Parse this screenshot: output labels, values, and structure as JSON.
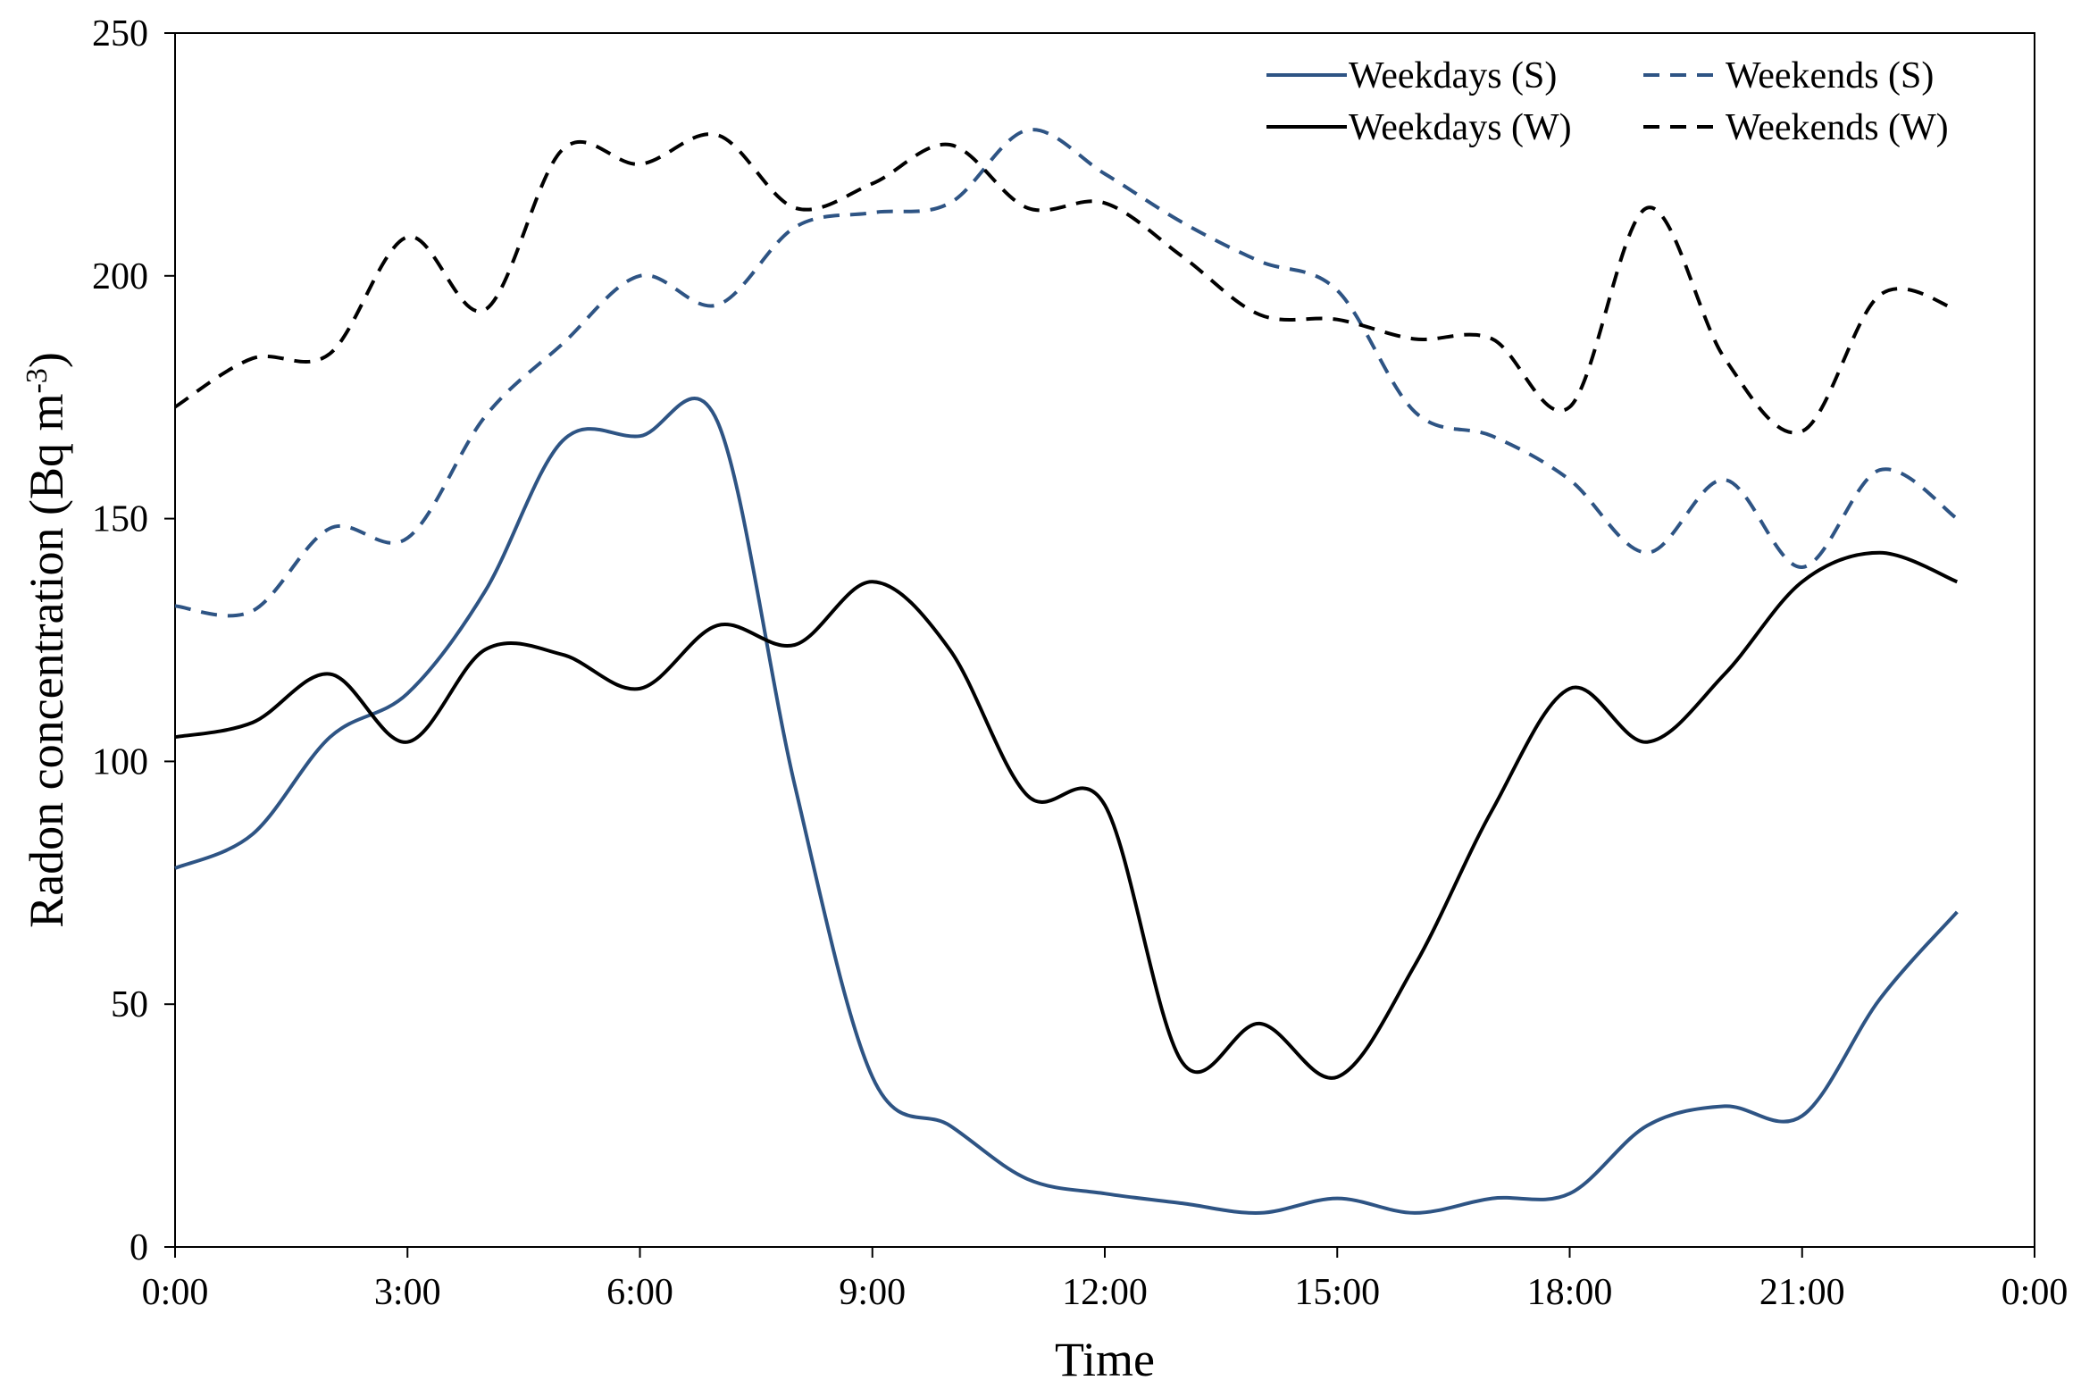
{
  "chart_data": {
    "type": "line",
    "xlabel": "Time",
    "ylabel": "Radon concentration (Bq m",
    "ylabel_superscript": "-3",
    "ylabel_close": ")",
    "ylim": [
      0,
      250
    ],
    "y_ticks": [
      0,
      50,
      100,
      150,
      200,
      250
    ],
    "y_tick_labels": [
      "0",
      "50",
      "100",
      "150",
      "200",
      "250"
    ],
    "xlim_hours": [
      0,
      24
    ],
    "x_ticks_hours": [
      0,
      3,
      6,
      9,
      12,
      15,
      18,
      21,
      24
    ],
    "x_tick_labels": [
      "0:00",
      "3:00",
      "6:00",
      "9:00",
      "12:00",
      "15:00",
      "18:00",
      "21:00",
      "0:00"
    ],
    "grid": false,
    "legend_position": "top-right",
    "x_hours": [
      0,
      1,
      2,
      3,
      4,
      5,
      6,
      7,
      8,
      9,
      10,
      11,
      12,
      13,
      14,
      15,
      16,
      17,
      18,
      19,
      20,
      21,
      22,
      23
    ],
    "series": [
      {
        "name": "Weekdays (S)",
        "color": "#2E5484",
        "dash": "solid",
        "values": [
          78,
          85,
          105,
          114,
          135,
          166,
          167,
          170,
          95,
          35,
          25,
          14,
          11,
          9,
          7,
          10,
          7,
          10,
          11,
          25,
          29,
          27,
          51,
          69
        ]
      },
      {
        "name": "Weekends (S)",
        "color": "#2E5484",
        "dash": "dashed",
        "values": [
          132,
          131,
          148,
          146,
          171,
          186,
          200,
          194,
          210,
          213,
          215,
          230,
          221,
          211,
          203,
          197,
          172,
          167,
          158,
          143,
          158,
          140,
          160,
          150
        ]
      },
      {
        "name": "Weekdays (W)",
        "color": "#000000",
        "dash": "solid",
        "values": [
          105,
          108,
          118,
          104,
          123,
          122,
          115,
          128,
          124,
          137,
          123,
          93,
          91,
          38,
          46,
          35,
          58,
          90,
          115,
          104,
          118,
          137,
          143,
          137
        ]
      },
      {
        "name": "Weekends (W)",
        "color": "#000000",
        "dash": "dashed",
        "values": [
          173,
          183,
          184,
          208,
          193,
          226,
          223,
          229,
          214,
          219,
          227,
          214,
          215,
          204,
          192,
          191,
          187,
          187,
          173,
          214,
          183,
          168,
          196,
          193
        ]
      }
    ]
  }
}
